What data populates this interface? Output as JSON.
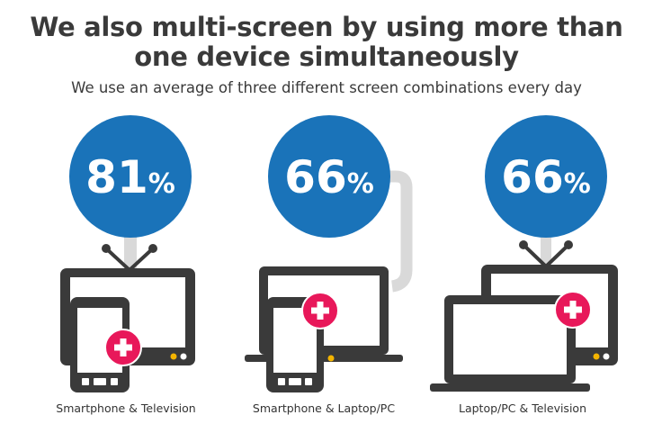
{
  "header": {
    "title_line1": "We also multi-screen by using more than",
    "title_line2": "one device simultaneously",
    "subtitle": "We use an average of three different screen combinations every day"
  },
  "stats": [
    {
      "value": "81",
      "unit": "%",
      "caption": "Smartphone & Television"
    },
    {
      "value": "66",
      "unit": "%",
      "caption": "Smartphone & Laptop/PC"
    },
    {
      "value": "66",
      "unit": "%",
      "caption": "Laptop/PC & Television"
    }
  ],
  "colors": {
    "circle": "#1a73b9",
    "device": "#3a3a3a",
    "plus_badge": "#e8185a",
    "indicator": "#f4b400",
    "cable": "#d9d9d9"
  },
  "icons": [
    "television-icon",
    "smartphone-icon",
    "laptop-icon",
    "plus-icon"
  ]
}
